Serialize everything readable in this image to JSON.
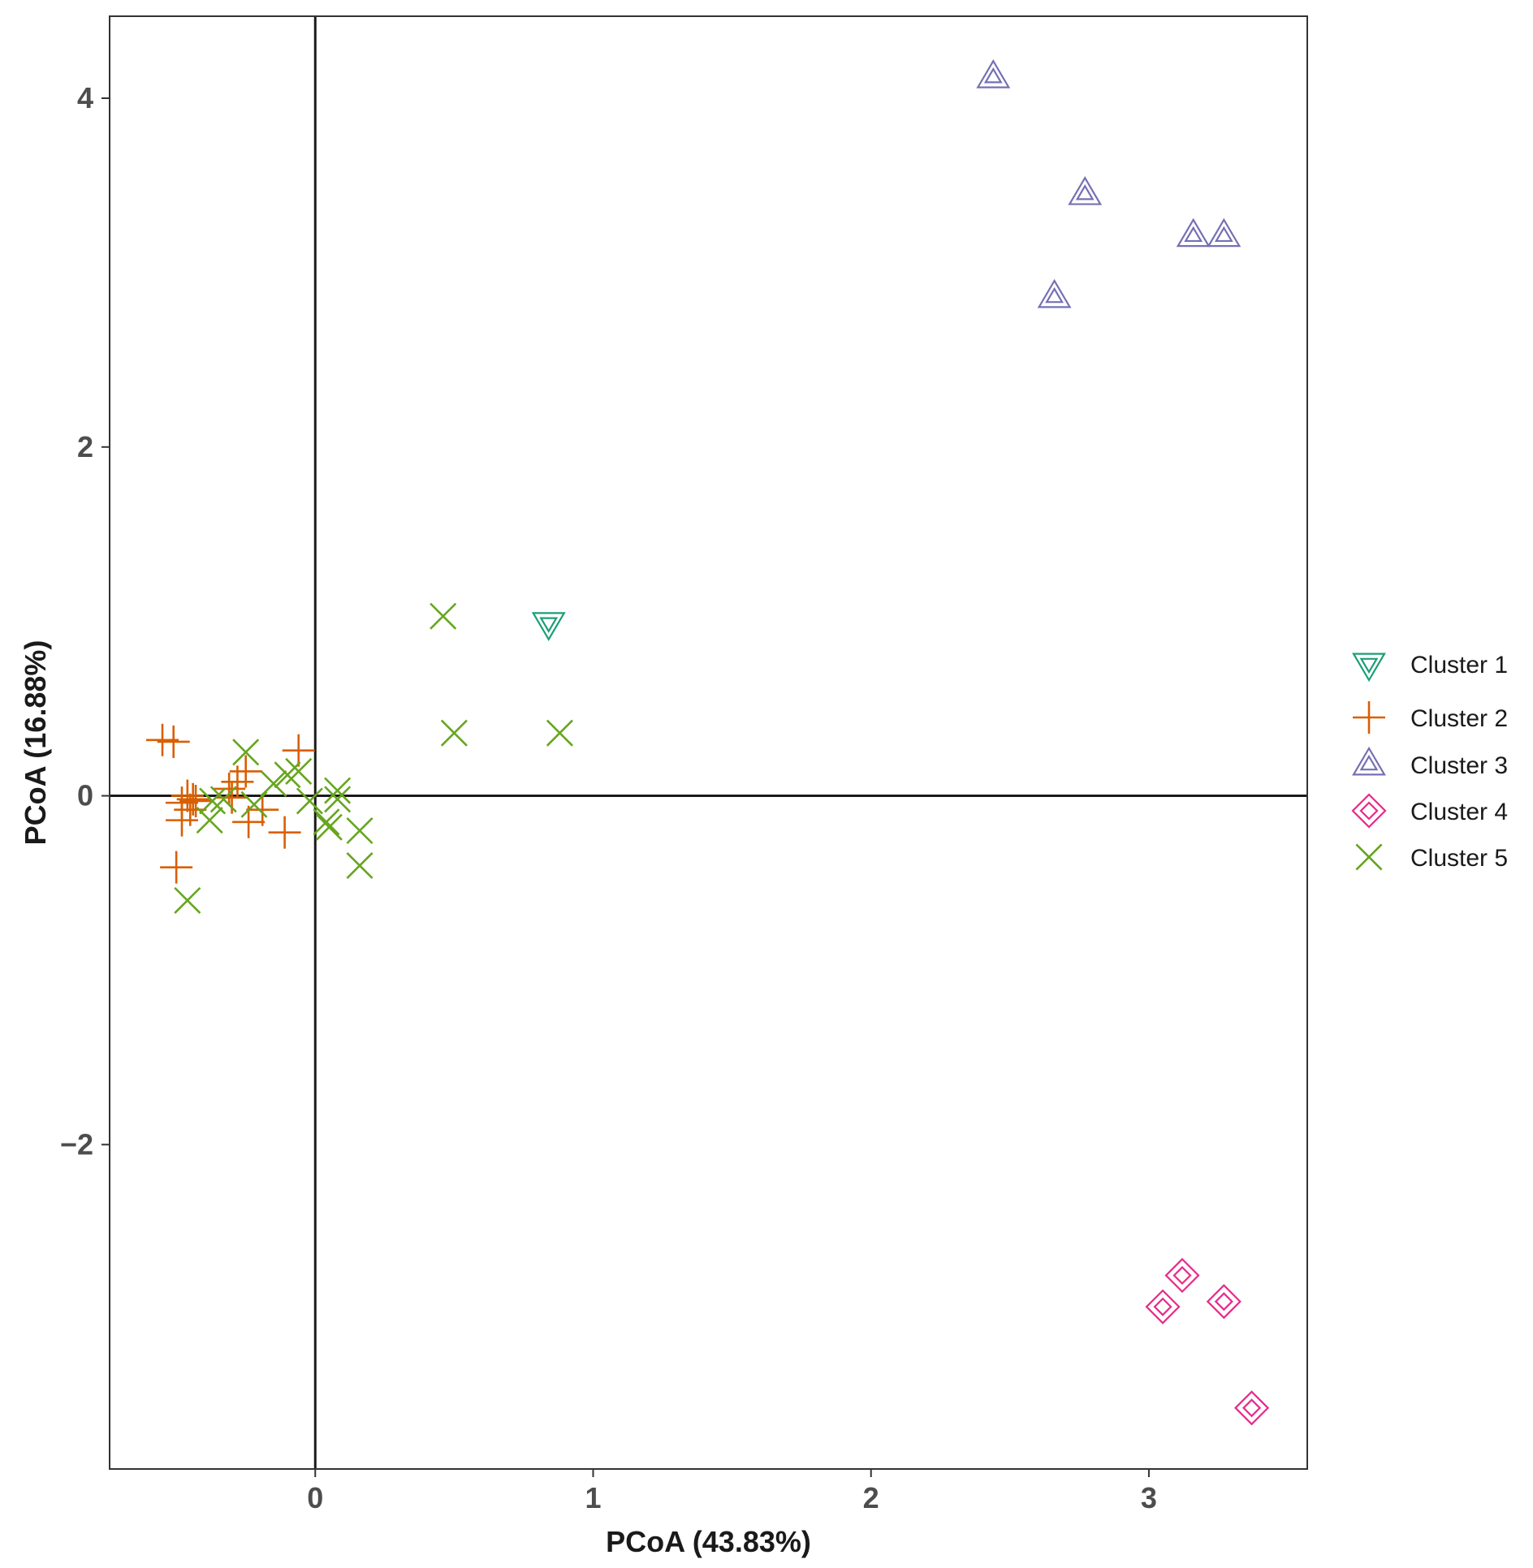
{
  "chart_data": {
    "type": "scatter",
    "title": "",
    "xlabel": "PCoA (43.83%)",
    "ylabel": "PCoA (16.88%)",
    "xlim": [
      -0.74,
      3.57
    ],
    "ylim": [
      -3.86,
      4.47
    ],
    "xticks": [
      0,
      1,
      2,
      3
    ],
    "yticks": [
      -2,
      0,
      2,
      4
    ],
    "xtick_labels": [
      "0",
      "1",
      "2",
      "3"
    ],
    "ytick_labels": [
      "−2",
      "0",
      "2",
      "4"
    ],
    "reference_lines": {
      "x": 0,
      "y": 0
    },
    "grid": false,
    "legend_position": "right",
    "series": [
      {
        "name": "Cluster 1",
        "marker": "triangle-down",
        "color": "#1b9e77",
        "x": [
          0.84
        ],
        "y": [
          0.99
        ]
      },
      {
        "name": "Cluster 2",
        "marker": "plus",
        "color": "#d95f02",
        "x": [
          -0.55,
          -0.51,
          -0.46,
          -0.44,
          -0.45,
          -0.48,
          -0.5,
          -0.48,
          -0.43,
          -0.31,
          -0.28,
          -0.3,
          -0.25,
          -0.24,
          -0.19,
          -0.11,
          -0.06
        ],
        "y": [
          0.32,
          0.31,
          0.0,
          -0.02,
          -0.08,
          -0.14,
          -0.41,
          -0.04,
          -0.03,
          0.04,
          0.08,
          -0.01,
          0.14,
          -0.15,
          -0.08,
          -0.21,
          0.26
        ]
      },
      {
        "name": "Cluster 3",
        "marker": "triangle-up",
        "color": "#7570b3",
        "x": [
          2.44,
          2.77,
          3.16,
          3.27,
          2.66
        ],
        "y": [
          4.12,
          3.45,
          3.21,
          3.21,
          2.86
        ]
      },
      {
        "name": "Cluster 4",
        "marker": "diamond",
        "color": "#e7298a",
        "x": [
          3.12,
          3.27,
          3.05,
          3.37
        ],
        "y": [
          -2.75,
          -2.9,
          -2.93,
          -3.51
        ]
      },
      {
        "name": "Cluster 5",
        "marker": "x",
        "color": "#66a61e",
        "x": [
          0.46,
          0.5,
          0.88,
          -0.25,
          -0.15,
          -0.1,
          -0.06,
          -0.22,
          -0.37,
          -0.33,
          -0.02,
          0.04,
          0.05,
          0.08,
          0.08,
          0.16,
          0.16,
          -0.46,
          -0.38
        ],
        "y": [
          1.03,
          0.36,
          0.36,
          0.25,
          0.07,
          0.12,
          0.14,
          -0.05,
          -0.03,
          -0.02,
          -0.03,
          -0.15,
          -0.18,
          -0.02,
          0.03,
          -0.2,
          -0.4,
          -0.6,
          -0.14
        ]
      }
    ]
  }
}
